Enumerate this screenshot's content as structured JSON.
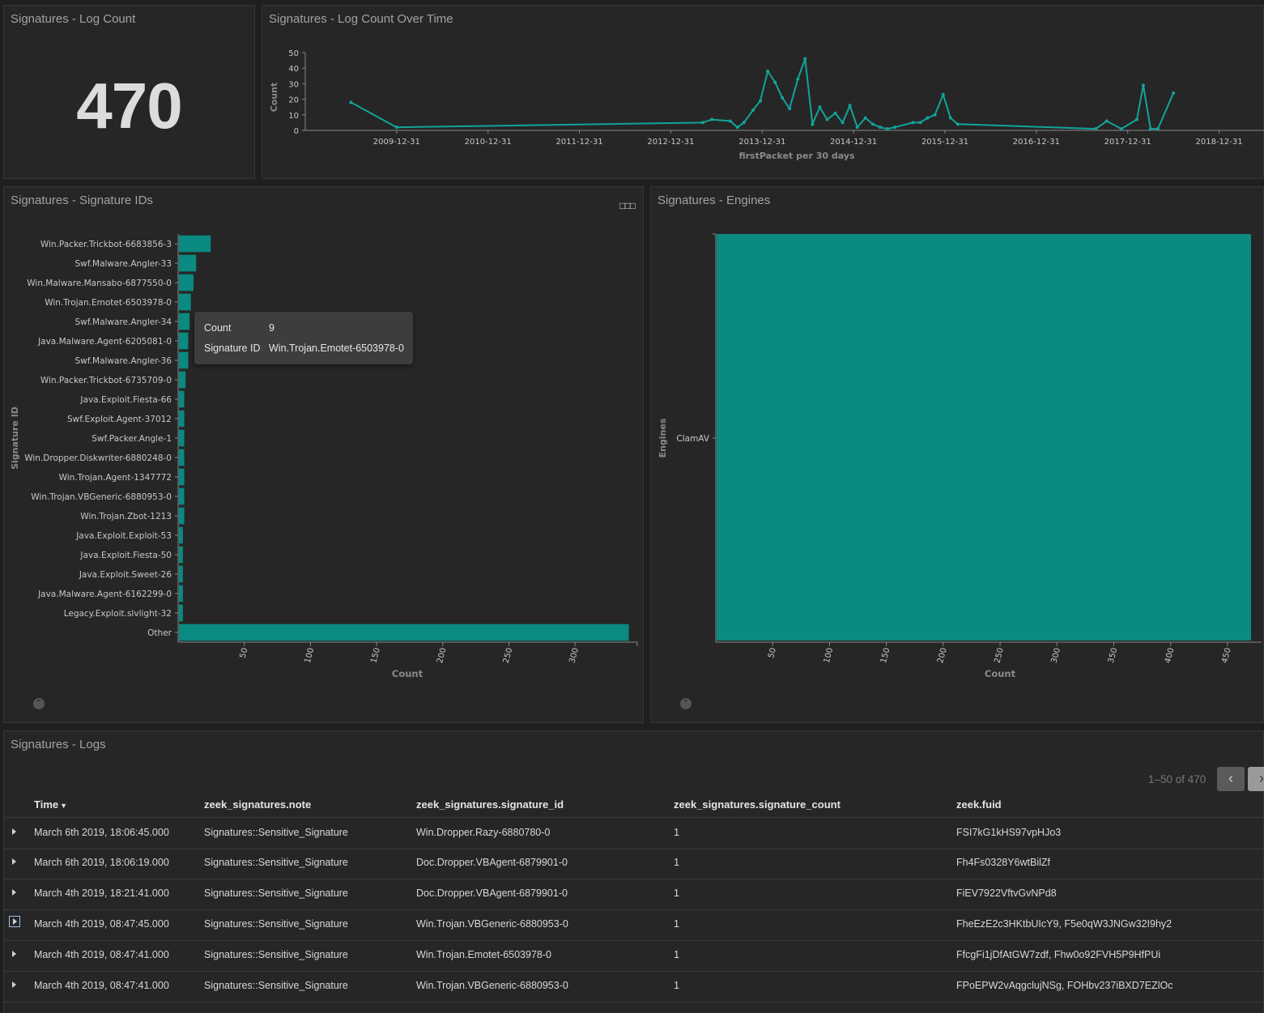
{
  "colors": {
    "accent": "#0a8a80",
    "line": "#13a39a",
    "bg": "#1f1f1f",
    "panel": "#262626"
  },
  "log_count_panel": {
    "title": "Signatures - Log Count",
    "value": "470"
  },
  "time_panel": {
    "title": "Signatures - Log Count Over Time"
  },
  "sigid_panel": {
    "title": "Signatures - Signature IDs",
    "menu_icon": "ellipsis-icon",
    "collapse_icon": "chevron-up-icon"
  },
  "engines_panel": {
    "title": "Signatures - Engines",
    "collapse_icon": "chevron-up-icon"
  },
  "tooltip": {
    "count_label": "Count",
    "count_value": "9",
    "sig_label": "Signature ID",
    "sig_value": "Win.Trojan.Emotet-6503978-0"
  },
  "chart_data": [
    {
      "type": "line",
      "title": "Signatures - Log Count Over Time",
      "xlabel": "firstPacket per 30 days",
      "ylabel": "Count",
      "ylim": [
        0,
        50
      ],
      "yticks": [
        0,
        10,
        20,
        30,
        40,
        50
      ],
      "xticks": [
        "2009-12-31",
        "2010-12-31",
        "2011-12-31",
        "2012-12-31",
        "2013-12-31",
        "2014-12-31",
        "2015-12-31",
        "2016-12-31",
        "2017-12-31",
        "2018-12-31"
      ],
      "xdomain_years": [
        2008.65,
        2019.15
      ],
      "points": [
        [
          2009.15,
          18
        ],
        [
          2009.65,
          2
        ],
        [
          2013.0,
          5
        ],
        [
          2013.1,
          7
        ],
        [
          2013.3,
          6
        ],
        [
          2013.38,
          2
        ],
        [
          2013.45,
          5
        ],
        [
          2013.55,
          13
        ],
        [
          2013.63,
          19
        ],
        [
          2013.71,
          38
        ],
        [
          2013.79,
          31
        ],
        [
          2013.87,
          21
        ],
        [
          2013.95,
          14
        ],
        [
          2014.04,
          33
        ],
        [
          2014.12,
          46
        ],
        [
          2014.2,
          4
        ],
        [
          2014.28,
          15
        ],
        [
          2014.36,
          7
        ],
        [
          2014.45,
          11
        ],
        [
          2014.53,
          5
        ],
        [
          2014.61,
          16
        ],
        [
          2014.69,
          2
        ],
        [
          2014.78,
          8
        ],
        [
          2014.86,
          4
        ],
        [
          2014.94,
          2
        ],
        [
          2015.02,
          1
        ],
        [
          2015.1,
          2
        ],
        [
          2015.3,
          5
        ],
        [
          2015.38,
          5
        ],
        [
          2015.46,
          8
        ],
        [
          2015.54,
          10
        ],
        [
          2015.63,
          23
        ],
        [
          2015.71,
          8
        ],
        [
          2015.79,
          4
        ],
        [
          2017.3,
          1
        ],
        [
          2017.42,
          6
        ],
        [
          2017.58,
          1
        ],
        [
          2017.75,
          7
        ],
        [
          2017.82,
          29
        ],
        [
          2017.9,
          1
        ],
        [
          2017.98,
          1
        ],
        [
          2018.15,
          24
        ]
      ]
    },
    {
      "type": "bar",
      "orientation": "horizontal",
      "title": "Signatures - Signature IDs",
      "xlabel": "Count",
      "ylabel": "Signature ID",
      "xlim": [
        0,
        347
      ],
      "xticks": [
        50,
        100,
        150,
        200,
        250,
        300
      ],
      "categories": [
        "Win.Packer.Trickbot-6683856-3",
        "Swf.Malware.Angler-33",
        "Win.Malware.Mansabo-6877550-0",
        "Win.Trojan.Emotet-6503978-0",
        "Swf.Malware.Angler-34",
        "Java.Malware.Agent-6205081-0",
        "Swf.Malware.Angler-36",
        "Win.Packer.Trickbot-6735709-0",
        "Java.Exploit.Fiesta-66",
        "Swf.Exploit.Agent-37012",
        "Swf.Packer.Angle-1",
        "Win.Dropper.Diskwriter-6880248-0",
        "Win.Trojan.Agent-1347772",
        "Win.Trojan.VBGeneric-6880953-0",
        "Win.Trojan.Zbot-1213",
        "Java.Exploit.Exploit-53",
        "Java.Exploit.Fiesta-50",
        "Java.Exploit.Sweet-26",
        "Java.Malware.Agent-6162299-0",
        "Legacy.Exploit.slvlight-32",
        "Other"
      ],
      "values": [
        24,
        13,
        11,
        9,
        8,
        7,
        7,
        5,
        4,
        4,
        4,
        4,
        4,
        4,
        4,
        3,
        3,
        3,
        3,
        3,
        340
      ]
    },
    {
      "type": "bar",
      "orientation": "horizontal",
      "title": "Signatures - Engines",
      "xlabel": "Count",
      "ylabel": "Engines",
      "xlim": [
        0,
        470
      ],
      "xticks": [
        50,
        100,
        150,
        200,
        250,
        300,
        350,
        400,
        450
      ],
      "categories": [
        "ClamAV"
      ],
      "values": [
        470
      ]
    }
  ],
  "logs_panel": {
    "title": "Signatures - Logs",
    "pager_text": "1–50 of 470",
    "prev_icon": "chevron-left-icon",
    "next_icon": "chevron-right-icon",
    "columns": [
      "Time",
      "zeek_signatures.note",
      "zeek_signatures.signature_id",
      "zeek_signatures.signature_count",
      "zeek.fuid"
    ],
    "sort_icon": "sort-down-icon",
    "rows": [
      [
        "March 6th 2019, 18:06:45.000",
        "Signatures::Sensitive_Signature",
        "Win.Dropper.Razy-6880780-0",
        "1",
        "FSI7kG1kHS97vpHJo3"
      ],
      [
        "March 6th 2019, 18:06:19.000",
        "Signatures::Sensitive_Signature",
        "Doc.Dropper.VBAgent-6879901-0",
        "1",
        "Fh4Fs0328Y6wtBilZf"
      ],
      [
        "March 4th 2019, 18:21:41.000",
        "Signatures::Sensitive_Signature",
        "Doc.Dropper.VBAgent-6879901-0",
        "1",
        "FiEV7922VftvGvNPd8"
      ],
      [
        "March 4th 2019, 08:47:45.000",
        "Signatures::Sensitive_Signature",
        "Win.Trojan.VBGeneric-6880953-0",
        "1",
        "FheEzE2c3HKtbUIcY9, F5e0qW3JNGw32I9hy2"
      ],
      [
        "March 4th 2019, 08:47:41.000",
        "Signatures::Sensitive_Signature",
        "Win.Trojan.Emotet-6503978-0",
        "1",
        "FfcgFi1jDfAtGW7zdf, Fhw0o92FVH5P9HfPUi"
      ],
      [
        "March 4th 2019, 08:47:41.000",
        "Signatures::Sensitive_Signature",
        "Win.Trojan.VBGeneric-6880953-0",
        "1",
        "FPoEPW2vAqgclujNSg, FOHbv237iBXD7EZlOc"
      ]
    ]
  }
}
